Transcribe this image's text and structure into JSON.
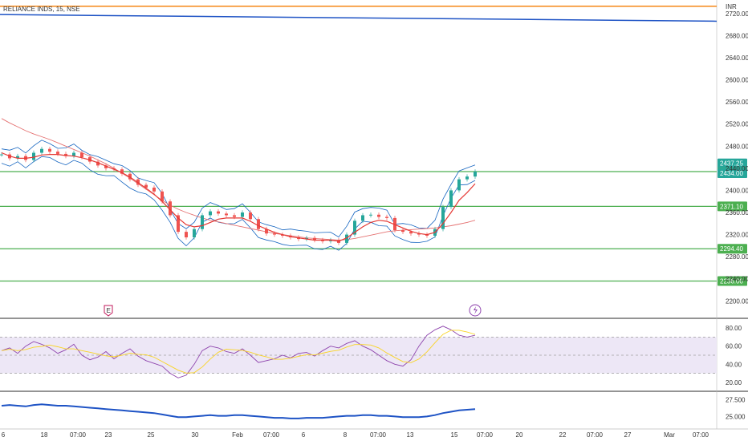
{
  "header": {
    "symbol": "RELIANCE INDS, 15, NSE",
    "currency": "INR"
  },
  "colors": {
    "orange_line": "#f57c00",
    "blue_line": "#1e53c5",
    "support_line": "#4caf50",
    "badge": "#4caf50",
    "price_badge": "#26a69a",
    "candle_up": "#26a69a",
    "candle_down": "#ef5350",
    "ma_red": "#e53935",
    "ma_pink": "#e57373",
    "bollinger": "#1565c0",
    "rsi": "#8e44ad",
    "rsi_band": "#ede7f6",
    "volume_line": "#1e53c5"
  },
  "chart_data": [
    {
      "type": "line",
      "panel": "price",
      "title": "RELIANCE INDS, 15, NSE",
      "y_axis_label": "INR",
      "y_ticks": [
        "2720.00",
        "2680.00",
        "2640.00",
        "2600.00",
        "2560.00",
        "2520.00",
        "2480.00",
        "2440.00",
        "2400.00",
        "2360.00",
        "2320.00",
        "2280.00",
        "2240.00",
        "2200.00"
      ],
      "x_ticks": [
        "6",
        "18",
        "07:00",
        "23",
        "25",
        "30",
        "Feb",
        "07:00",
        "6",
        "8",
        "07:00",
        "13",
        "15",
        "07:00",
        "20",
        "22",
        "07:00",
        "27",
        "Mar",
        "07:00"
      ],
      "ylim": [
        2170,
        2740
      ],
      "horizontal_levels": [
        {
          "value": 2733,
          "color": "orange"
        },
        {
          "value": 2434.0,
          "label": "2434.00",
          "color": "green"
        },
        {
          "value": 2371.1,
          "label": "2371.10",
          "color": "green"
        },
        {
          "value": 2294.4,
          "label": "2294.40",
          "color": "green"
        },
        {
          "value": 2236.0,
          "label": "2236.00",
          "color": "green"
        }
      ],
      "price_badges": [
        {
          "value": 2437.25,
          "label": "2437.25"
        },
        {
          "value": 2434.0,
          "label": "2434.00"
        }
      ],
      "trendline": {
        "start": 2718,
        "end": 2706
      },
      "series": [
        {
          "type": "candles",
          "x": [
            0,
            10,
            20,
            30,
            40,
            50,
            60,
            70,
            80,
            90,
            100,
            110,
            120,
            130,
            140,
            150,
            160,
            170,
            180,
            190,
            200,
            210,
            220,
            230,
            240,
            250,
            260,
            270,
            280,
            290,
            300,
            310,
            320,
            330,
            340,
            350,
            360,
            370,
            380,
            390,
            400,
            410,
            420,
            430,
            440,
            450,
            460,
            470,
            480,
            490,
            500,
            510,
            520,
            530,
            540,
            550,
            560,
            570,
            580,
            590
          ],
          "values": [
            2465,
            2458,
            2462,
            2455,
            2468,
            2475,
            2470,
            2466,
            2462,
            2468,
            2460,
            2452,
            2445,
            2440,
            2438,
            2430,
            2420,
            2410,
            2405,
            2398,
            2380,
            2355,
            2325,
            2315,
            2330,
            2355,
            2362,
            2358,
            2355,
            2352,
            2360,
            2348,
            2330,
            2322,
            2320,
            2318,
            2315,
            2312,
            2314,
            2310,
            2308,
            2310,
            2305,
            2320,
            2345,
            2355,
            2356,
            2352,
            2350,
            2328,
            2325,
            2322,
            2320,
            2318,
            2330,
            2370,
            2400,
            2420,
            2425,
            2434
          ]
        },
        {
          "name": "MA",
          "values": [
            2468,
            2462,
            2458,
            2458,
            2460,
            2464,
            2465,
            2465,
            2463,
            2462,
            2459,
            2455,
            2450,
            2444,
            2438,
            2432,
            2424,
            2414,
            2404,
            2393,
            2380,
            2365,
            2350,
            2338,
            2334,
            2336,
            2342,
            2348,
            2350,
            2350,
            2350,
            2344,
            2336,
            2330,
            2324,
            2320,
            2316,
            2314,
            2312,
            2310,
            2310,
            2310,
            2308,
            2314,
            2324,
            2334,
            2342,
            2346,
            2344,
            2338,
            2332,
            2326,
            2322,
            2320,
            2324,
            2340,
            2360,
            2382,
            2396,
            2412
          ]
        },
        {
          "name": "MA long",
          "values": [
            2530,
            2522,
            2515,
            2508,
            2502,
            2497,
            2492,
            2486,
            2480,
            2474,
            2468,
            2462,
            2455,
            2448,
            2440,
            2431,
            2422,
            2412,
            2402,
            2392,
            2382,
            2373,
            2366,
            2360,
            2355,
            2350,
            2346,
            2343,
            2340,
            2337,
            2334,
            2331,
            2328,
            2325,
            2322,
            2320,
            2318,
            2316,
            2314,
            2313,
            2312,
            2311,
            2310,
            2311,
            2313,
            2316,
            2319,
            2322,
            2325,
            2327,
            2328,
            2329,
            2330,
            2331,
            2332,
            2334,
            2336,
            2339,
            2342,
            2346
          ]
        }
      ]
    },
    {
      "type": "line",
      "panel": "rsi",
      "y_ticks": [
        "80.00",
        "60.00",
        "40.00",
        "20.00"
      ],
      "ylim": [
        12,
        88
      ],
      "band": [
        30,
        70
      ],
      "midline": 50,
      "values": [
        55,
        58,
        52,
        60,
        65,
        62,
        58,
        52,
        56,
        62,
        50,
        45,
        48,
        54,
        46,
        52,
        57,
        49,
        44,
        41,
        38,
        30,
        25,
        28,
        40,
        55,
        60,
        58,
        54,
        52,
        57,
        50,
        42,
        44,
        46,
        50,
        47,
        52,
        53,
        49,
        55,
        60,
        58,
        63,
        66,
        60,
        56,
        50,
        44,
        40,
        38,
        45,
        60,
        72,
        78,
        82,
        78,
        72,
        70,
        72
      ]
    },
    {
      "type": "line",
      "panel": "volume",
      "y_ticks": [
        "27.500",
        "25.000"
      ],
      "ylim": [
        23.5,
        28.5
      ],
      "values": [
        26.6,
        26.7,
        26.6,
        26.5,
        26.7,
        26.8,
        26.7,
        26.6,
        26.6,
        26.5,
        26.4,
        26.3,
        26.2,
        26.1,
        26.0,
        25.9,
        25.8,
        25.7,
        25.6,
        25.5,
        25.3,
        25.1,
        24.9,
        24.9,
        25.0,
        25.1,
        25.2,
        25.1,
        25.1,
        25.2,
        25.2,
        25.1,
        25.0,
        24.9,
        24.8,
        24.8,
        24.7,
        24.7,
        24.8,
        24.8,
        24.8,
        24.9,
        25.0,
        25.1,
        25.1,
        25.2,
        25.2,
        25.1,
        25.1,
        25.0,
        24.9,
        24.9,
        24.9,
        25.0,
        25.2,
        25.5,
        25.7,
        25.9,
        26.0,
        26.1
      ]
    }
  ],
  "markers": {
    "earnings": "E",
    "dividend_icon": "lightning-icon"
  }
}
